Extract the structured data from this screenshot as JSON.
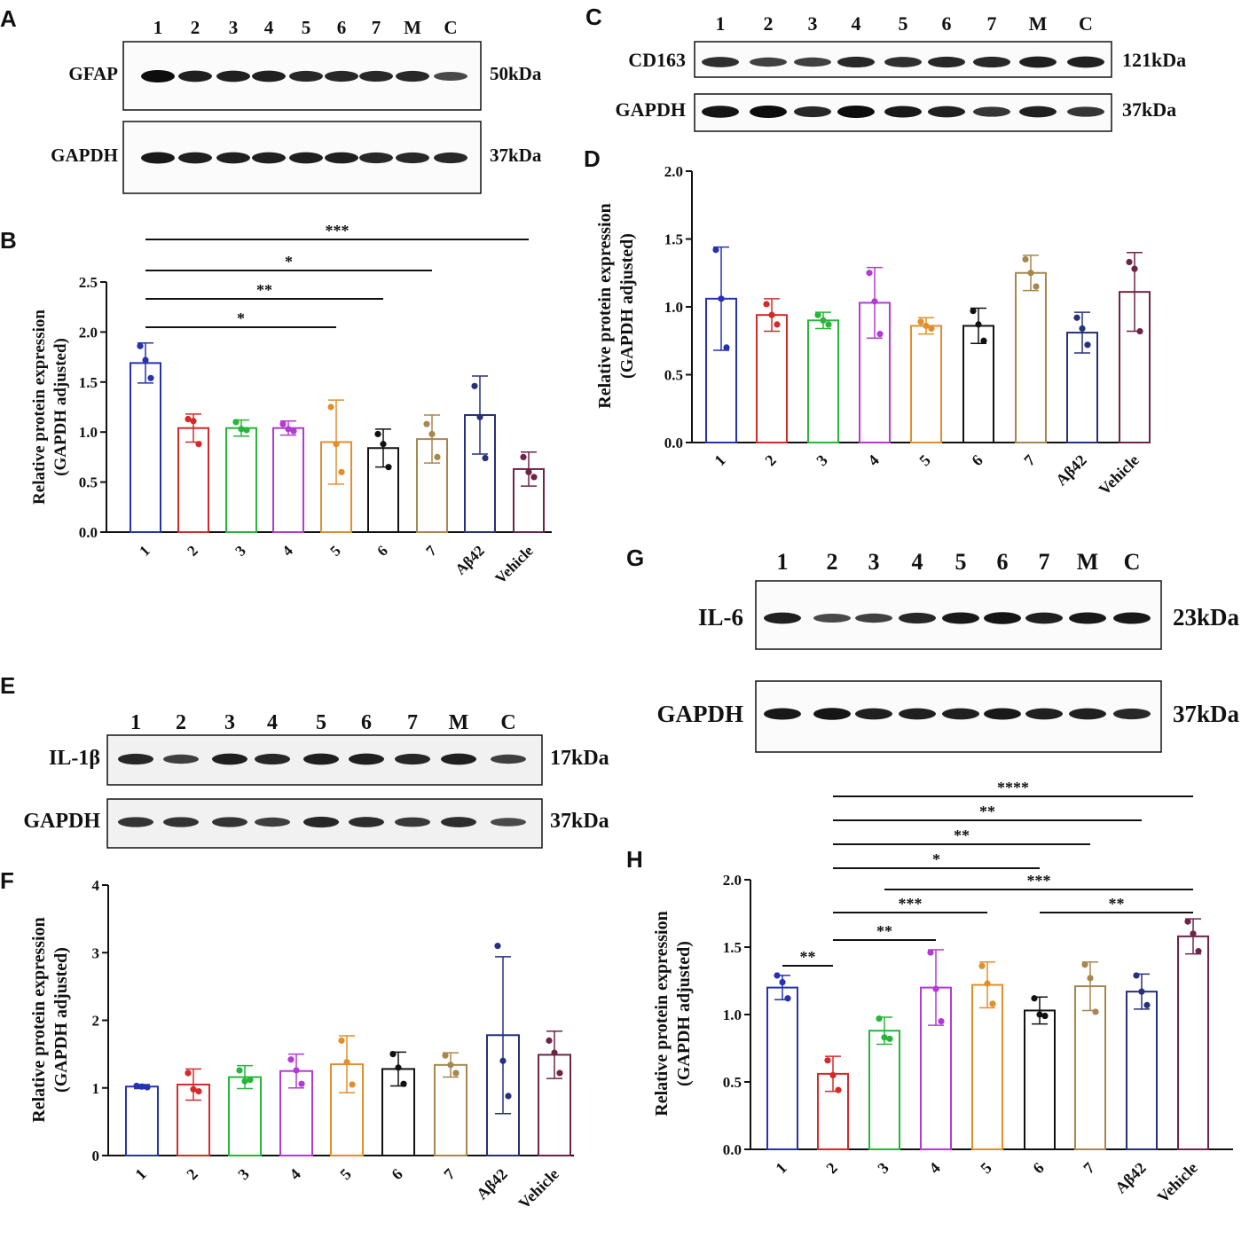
{
  "colors": [
    "#2633b0",
    "#d42a2a",
    "#27b53a",
    "#b33ad4",
    "#e08f2c",
    "#111111",
    "#a6874f",
    "#27307a",
    "#6e2448"
  ],
  "blots": [
    {
      "panel": "A",
      "lanes": [
        "1",
        "2",
        "3",
        "4",
        "5",
        "6",
        "7",
        "M",
        "C"
      ],
      "strips": [
        {
          "protein": "GFAP",
          "size": "50kDa",
          "intensity": [
            1.0,
            0.85,
            0.85,
            0.85,
            0.8,
            0.8,
            0.8,
            0.8,
            0.55
          ]
        },
        {
          "protein": "GAPDH",
          "size": "37kDa",
          "intensity": [
            0.9,
            0.85,
            0.85,
            0.85,
            0.85,
            0.85,
            0.8,
            0.8,
            0.8
          ]
        }
      ]
    },
    {
      "panel": "C",
      "lanes": [
        "1",
        "2",
        "3",
        "4",
        "5",
        "6",
        "7",
        "M",
        "C"
      ],
      "strips": [
        {
          "protein": "CD163",
          "size": "121kDa",
          "intensity": [
            0.75,
            0.6,
            0.6,
            0.8,
            0.75,
            0.8,
            0.8,
            0.85,
            0.85
          ]
        },
        {
          "protein": "GAPDH",
          "size": "37kDa",
          "intensity": [
            0.95,
            1.0,
            0.8,
            1.0,
            0.9,
            0.85,
            0.7,
            0.85,
            0.7
          ]
        }
      ]
    },
    {
      "panel": "E",
      "lanes": [
        "1",
        "2",
        "3",
        "4",
        "5",
        "6",
        "7",
        "M",
        "C"
      ],
      "strips": [
        {
          "protein": "IL-1β",
          "size": "17kDa",
          "intensity": [
            0.8,
            0.6,
            0.85,
            0.8,
            0.85,
            0.85,
            0.8,
            0.85,
            0.6
          ]
        },
        {
          "protein": "GAPDH",
          "size": "37kDa",
          "intensity": [
            0.7,
            0.7,
            0.7,
            0.6,
            0.8,
            0.75,
            0.65,
            0.75,
            0.5
          ]
        }
      ]
    },
    {
      "panel": "G",
      "lanes": [
        "1",
        "2",
        "3",
        "4",
        "5",
        "6",
        "7",
        "M",
        "C"
      ],
      "strips": [
        {
          "protein": "IL-6",
          "size": "23kDa",
          "intensity": [
            0.85,
            0.55,
            0.6,
            0.8,
            0.9,
            0.95,
            0.85,
            0.9,
            0.9
          ]
        },
        {
          "protein": "GAPDH",
          "size": "37kDa",
          "intensity": [
            0.9,
            0.95,
            0.85,
            0.85,
            0.85,
            0.9,
            0.85,
            0.85,
            0.8
          ]
        }
      ]
    }
  ],
  "chart_data": [
    {
      "panel": "B",
      "type": "bar",
      "ylabel": [
        "Relative protein expression",
        "(GAPDH adjusted)"
      ],
      "ylim": [
        0,
        2.5
      ],
      "yticks": [
        "0.0",
        "0.5",
        "1.0",
        "1.5",
        "2.0",
        "2.5"
      ],
      "categories": [
        "1",
        "2",
        "3",
        "4",
        "5",
        "6",
        "7",
        "Aβ42",
        "Vehicle"
      ],
      "values": [
        1.69,
        1.04,
        1.04,
        1.04,
        0.9,
        0.84,
        0.93,
        1.17,
        0.63
      ],
      "sd": [
        0.2,
        0.14,
        0.08,
        0.07,
        0.42,
        0.19,
        0.24,
        0.39,
        0.17
      ],
      "points": [
        [
          1.86,
          1.72,
          1.54
        ],
        [
          1.13,
          1.11,
          0.88
        ],
        [
          1.1,
          1.03,
          1.02
        ],
        [
          1.08,
          1.03,
          1.01
        ],
        [
          1.25,
          0.88,
          0.6
        ],
        [
          0.98,
          0.88,
          0.65
        ],
        [
          1.08,
          0.98,
          0.75
        ],
        [
          1.46,
          1.15,
          0.74
        ],
        [
          0.75,
          0.6,
          0.55
        ]
      ],
      "significance": [
        {
          "from": "1",
          "to": "Vehicle",
          "label": "***"
        },
        {
          "from": "1",
          "to": "7",
          "label": "*"
        },
        {
          "from": "1",
          "to": "6",
          "label": "**"
        },
        {
          "from": "1",
          "to": "5",
          "label": "*"
        }
      ]
    },
    {
      "panel": "D",
      "type": "bar",
      "ylabel": [
        "Relative protein expression",
        "(GAPDH adjusted)"
      ],
      "ylim": [
        0,
        2.0
      ],
      "yticks": [
        "0.0",
        "0.5",
        "1.0",
        "1.5",
        "2.0"
      ],
      "categories": [
        "1",
        "2",
        "3",
        "4",
        "5",
        "6",
        "7",
        "Aβ42",
        "Vehicle"
      ],
      "values": [
        1.06,
        0.94,
        0.9,
        1.03,
        0.86,
        0.86,
        1.25,
        0.81,
        1.11
      ],
      "sd": [
        0.38,
        0.12,
        0.06,
        0.26,
        0.06,
        0.13,
        0.13,
        0.15,
        0.29
      ],
      "points": [
        [
          1.42,
          1.06,
          0.7
        ],
        [
          1.02,
          0.94,
          0.87
        ],
        [
          0.94,
          0.9,
          0.87
        ],
        [
          1.25,
          1.04,
          0.8
        ],
        [
          0.89,
          0.86,
          0.84
        ],
        [
          0.97,
          0.87,
          0.75
        ],
        [
          1.35,
          1.25,
          1.15
        ],
        [
          0.92,
          0.84,
          0.72
        ],
        [
          1.33,
          1.28,
          0.82
        ]
      ],
      "significance": []
    },
    {
      "panel": "F",
      "type": "bar",
      "ylabel": [
        "Relative protein expression",
        "(GAPDH adjusted)"
      ],
      "ylim": [
        0,
        4
      ],
      "yticks": [
        "0",
        "1",
        "2",
        "3",
        "4"
      ],
      "categories": [
        "1",
        "2",
        "3",
        "4",
        "5",
        "6",
        "7",
        "Aβ42",
        "Vehicle"
      ],
      "values": [
        1.02,
        1.05,
        1.16,
        1.25,
        1.35,
        1.28,
        1.34,
        1.78,
        1.49
      ],
      "sd": [
        0.03,
        0.23,
        0.17,
        0.25,
        0.42,
        0.25,
        0.18,
        1.16,
        0.35
      ],
      "points": [
        [
          1.03,
          1.02,
          1.01
        ],
        [
          1.22,
          0.98,
          0.95
        ],
        [
          1.26,
          1.1,
          1.12
        ],
        [
          1.42,
          1.26,
          1.06
        ],
        [
          1.7,
          1.38,
          1.05
        ],
        [
          1.5,
          1.3,
          1.06
        ],
        [
          1.48,
          1.34,
          1.22
        ],
        [
          3.1,
          1.4,
          0.88
        ],
        [
          1.7,
          1.52,
          1.22
        ]
      ],
      "significance": []
    },
    {
      "panel": "H",
      "type": "bar",
      "ylabel": [
        "Relative protein expression",
        "(GAPDH adjusted)"
      ],
      "ylim": [
        0,
        2.0
      ],
      "yticks": [
        "0.0",
        "0.5",
        "1.0",
        "1.5",
        "2.0"
      ],
      "categories": [
        "1",
        "2",
        "3",
        "4",
        "5",
        "6",
        "7",
        "Aβ42",
        "Vehicle"
      ],
      "values": [
        1.2,
        0.56,
        0.88,
        1.2,
        1.22,
        1.03,
        1.21,
        1.17,
        1.58
      ],
      "sd": [
        0.09,
        0.13,
        0.1,
        0.28,
        0.17,
        0.1,
        0.18,
        0.13,
        0.13
      ],
      "points": [
        [
          1.29,
          1.24,
          1.12
        ],
        [
          0.66,
          0.55,
          0.44
        ],
        [
          0.97,
          0.83,
          0.82
        ],
        [
          1.46,
          1.19,
          0.95
        ],
        [
          1.36,
          1.23,
          1.08
        ],
        [
          1.12,
          1.0,
          0.99
        ],
        [
          1.37,
          1.27,
          1.02
        ],
        [
          1.29,
          1.17,
          1.07
        ],
        [
          1.69,
          1.6,
          1.47
        ]
      ],
      "significance": [
        {
          "from": "2",
          "to": "Vehicle",
          "label": "****"
        },
        {
          "from": "2",
          "to": "Aβ42",
          "label": "**"
        },
        {
          "from": "2",
          "to": "7",
          "label": "**"
        },
        {
          "from": "2",
          "to": "6",
          "label": "*"
        },
        {
          "from": "3",
          "to": "Vehicle",
          "label": "***"
        },
        {
          "from": "2",
          "to": "5",
          "label": "***"
        },
        {
          "from": "6",
          "to": "Vehicle",
          "label": "**"
        },
        {
          "from": "2",
          "to": "4",
          "label": "**"
        },
        {
          "from": "1",
          "to": "2",
          "label": "**"
        }
      ]
    }
  ]
}
